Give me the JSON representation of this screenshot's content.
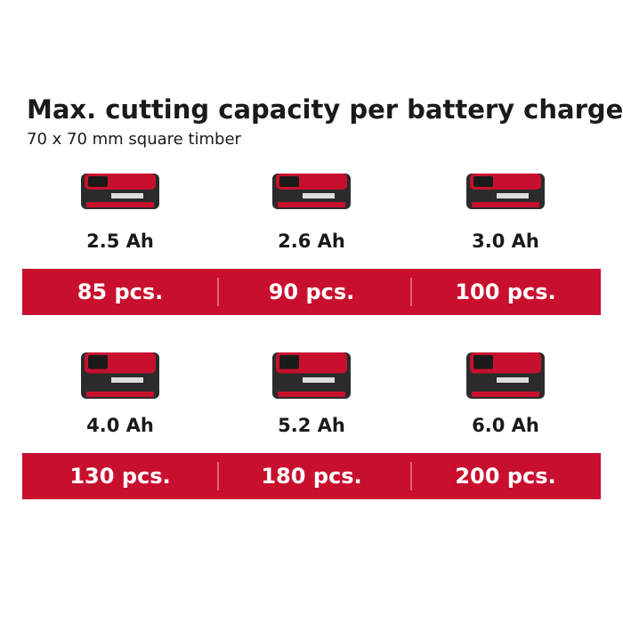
{
  "header": {
    "title": "Max. cutting capacity per battery charge",
    "subtitle": "70 x 70 mm square timber"
  },
  "rows": [
    {
      "items": [
        {
          "battery": "2.5 Ah",
          "capacity": "85 pcs."
        },
        {
          "battery": "2.6 Ah",
          "capacity": "90 pcs."
        },
        {
          "battery": "3.0 Ah",
          "capacity": "100 pcs."
        }
      ]
    },
    {
      "items": [
        {
          "battery": "4.0 Ah",
          "capacity": "130 pcs."
        },
        {
          "battery": "5.2 Ah",
          "capacity": "180 pcs."
        },
        {
          "battery": "6.0 Ah",
          "capacity": "200 pcs."
        }
      ]
    }
  ]
}
